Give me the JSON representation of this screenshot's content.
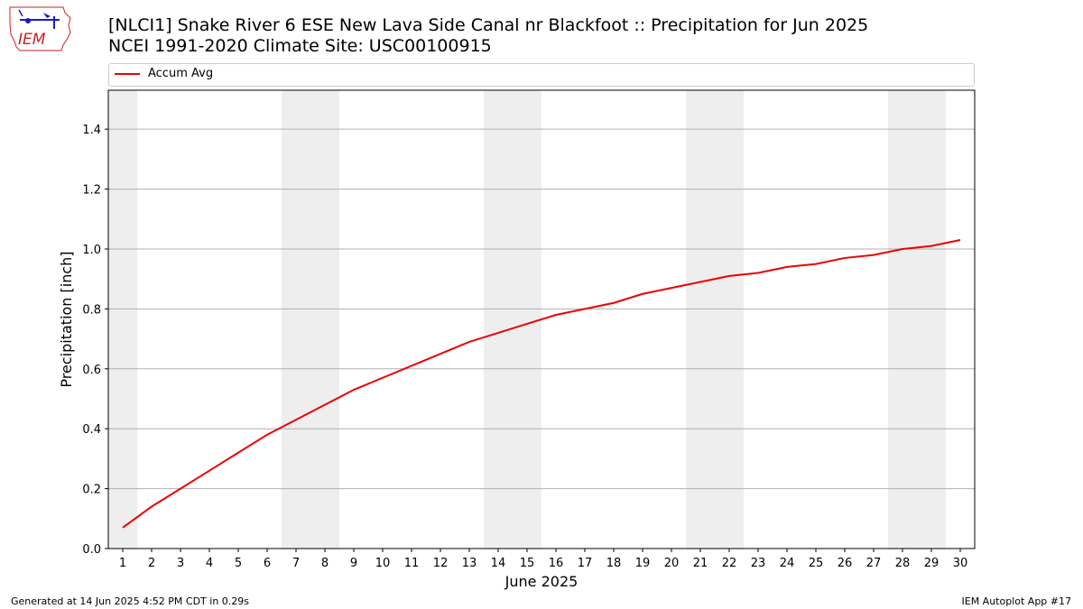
{
  "header": {
    "title_line1": "[NLCI1] Snake River 6 ESE New Lava Side Canal nr Blackfoot :: Precipitation for Jun 2025",
    "title_line2": "NCEI 1991-2020 Climate Site: USC00100915",
    "logo_text": "IEM"
  },
  "footer": {
    "generated": "Generated at 14 Jun 2025 4:52 PM CDT in 0.29s",
    "app": "IEM Autoplot App #17"
  },
  "colors": {
    "line": "#ee0000",
    "weekend_band": "#eeeeee",
    "grid": "#b0b0b0",
    "logo": "#cc2222"
  },
  "chart_data": {
    "type": "line",
    "xlabel": "June 2025",
    "ylabel": "Precipitation [inch]",
    "x": [
      1,
      2,
      3,
      4,
      5,
      6,
      7,
      8,
      9,
      10,
      11,
      12,
      13,
      14,
      15,
      16,
      17,
      18,
      19,
      20,
      21,
      22,
      23,
      24,
      25,
      26,
      27,
      28,
      29,
      30
    ],
    "xticks": [
      "1",
      "2",
      "3",
      "4",
      "5",
      "6",
      "7",
      "8",
      "9",
      "10",
      "11",
      "12",
      "13",
      "14",
      "15",
      "16",
      "17",
      "18",
      "19",
      "20",
      "21",
      "22",
      "23",
      "24",
      "25",
      "26",
      "27",
      "28",
      "29",
      "30"
    ],
    "xlim": [
      0.5,
      30.5
    ],
    "ylim": [
      0.0,
      1.53
    ],
    "yticks": [
      "0.0",
      "0.2",
      "0.4",
      "0.6",
      "0.8",
      "1.0",
      "1.2",
      "1.4"
    ],
    "grid": "horizontal",
    "legend_position": "top",
    "weekend_bands": [
      [
        0.5,
        1.5
      ],
      [
        6.5,
        8.5
      ],
      [
        13.5,
        15.5
      ],
      [
        20.5,
        22.5
      ],
      [
        27.5,
        29.5
      ]
    ],
    "series": [
      {
        "name": "Accum Avg",
        "values": [
          0.07,
          0.14,
          0.2,
          0.26,
          0.32,
          0.38,
          0.43,
          0.48,
          0.53,
          0.57,
          0.61,
          0.65,
          0.69,
          0.72,
          0.75,
          0.78,
          0.8,
          0.82,
          0.85,
          0.87,
          0.89,
          0.91,
          0.92,
          0.94,
          0.95,
          0.97,
          0.98,
          1.0,
          1.01,
          1.03
        ]
      }
    ]
  }
}
